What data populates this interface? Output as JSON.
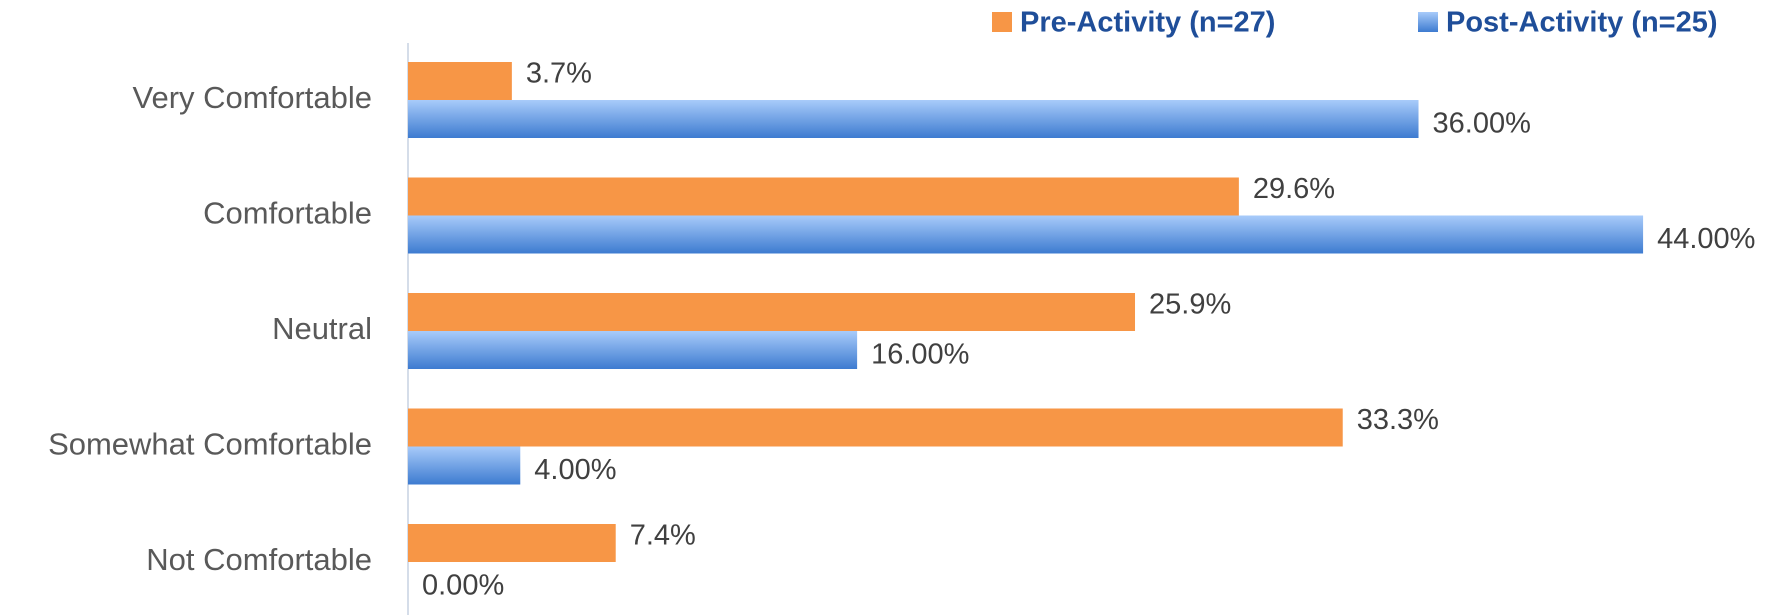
{
  "chart_data": {
    "type": "bar",
    "orientation": "horizontal",
    "categories": [
      "Very Comfortable",
      "Comfortable",
      "Neutral",
      "Somewhat Comfortable",
      "Not Comfortable"
    ],
    "series": [
      {
        "name": "Pre-Activity (n=27)",
        "color": "#f79646",
        "values": [
          3.7,
          29.6,
          25.9,
          33.3,
          7.4
        ],
        "value_labels": [
          "3.7%",
          "29.6%",
          "25.9%",
          "33.3%",
          "7.4%"
        ]
      },
      {
        "name": "Post-Activity (n=25)",
        "color": "#5b93e0",
        "values": [
          36,
          44,
          16,
          4,
          0
        ],
        "value_labels": [
          "36.00%",
          "44.00%",
          "16.00%",
          "4.00%",
          "0.00%"
        ]
      }
    ],
    "xlim": [
      0,
      45
    ],
    "legend": "top-right"
  }
}
